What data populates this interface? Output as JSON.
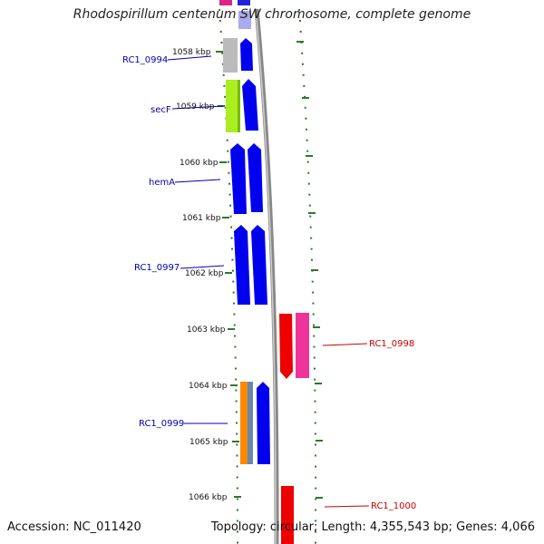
{
  "title": "Rhodospirillum centenum SW chromosome, complete genome",
  "footer": {
    "accession": "Accession: NC_011420",
    "topology": "Topology: circular; Length: 4,355,543 bp; Genes: 4,066"
  },
  "colors": {
    "label_left": "#0000aa",
    "label_right": "#cc0000",
    "tick": "#2a7a2a",
    "backbone": "#888888"
  },
  "kbp_labels": [
    "1058 kbp",
    "1059 kbp",
    "1060 kbp",
    "1061 kbp",
    "1062 kbp",
    "1063 kbp",
    "1064 kbp",
    "1065 kbp",
    "1066 kbp"
  ],
  "gene_labels": {
    "left": [
      "RC1_0994",
      "secF",
      "hemA",
      "RC1_0997",
      "RC1_0999"
    ],
    "right": [
      "RC1_0998",
      "RC1_1000"
    ]
  }
}
